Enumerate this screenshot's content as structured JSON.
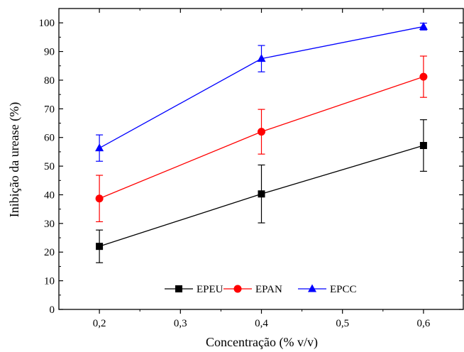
{
  "chart_data": {
    "type": "line",
    "xlabel": "Concentração (% v/v)",
    "ylabel": "Inibição da urease (%)",
    "xlim": [
      0.15,
      0.65
    ],
    "ylim": [
      0,
      105
    ],
    "x_ticks": [
      0.2,
      0.3,
      0.4,
      0.5,
      0.6
    ],
    "x_tick_labels": [
      "0,2",
      "0,3",
      "0,4",
      "0,5",
      "0,6"
    ],
    "y_ticks": [
      0,
      10,
      20,
      30,
      40,
      50,
      60,
      70,
      80,
      90,
      100
    ],
    "y_tick_labels": [
      "0",
      "10",
      "20",
      "30",
      "40",
      "50",
      "60",
      "70",
      "80",
      "90",
      "100"
    ],
    "x": [
      0.2,
      0.4,
      0.6
    ],
    "series": [
      {
        "name": "EPEU",
        "values": [
          22,
          40.3,
          57.2
        ],
        "errors": [
          5.7,
          10.1,
          9
        ],
        "color": "#000000",
        "marker": "square"
      },
      {
        "name": "EPAN",
        "values": [
          38.7,
          62,
          81.2
        ],
        "errors": [
          8.1,
          7.8,
          7.2
        ],
        "color": "#ff0000",
        "marker": "circle"
      },
      {
        "name": "EPCC",
        "values": [
          56.3,
          87.5,
          98.7
        ],
        "errors": [
          4.6,
          4.6,
          1.2
        ],
        "color": "#0000ff",
        "marker": "triangle"
      }
    ],
    "grid": false,
    "legend_position": "bottom-center"
  }
}
